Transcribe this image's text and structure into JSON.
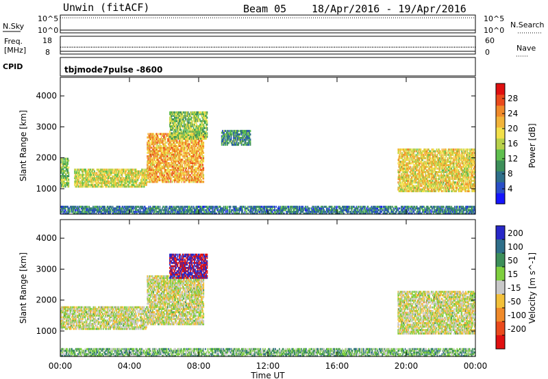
{
  "header": {
    "station": "Unwin (fitACF)",
    "beam": "Beam 05",
    "date_range": "18/Apr/2016 - 19/Apr/2016"
  },
  "status_panels": {
    "nsky_label": "N.Sky",
    "nsky_ticks": [
      "10^5",
      "10^0"
    ],
    "nsearch_label": "N.Search",
    "freq_label_1": "Freq.",
    "freq_label_2": "[MHz]",
    "freq_ticks": [
      "18",
      "8"
    ],
    "nave_ticks": [
      "60",
      "0"
    ],
    "nave_label": "Nave",
    "cpid_label": "CPID",
    "cpid_value": "tbjmode7pulse -8600"
  },
  "chart_data": [
    {
      "type": "heatmap",
      "name": "power",
      "ylabel": "Slant Range [km]",
      "ylim": [
        180,
        4600
      ],
      "yticks": [
        1000,
        2000,
        3000,
        4000
      ],
      "colorbar": {
        "label": "Power [dB]",
        "ticks": [
          4,
          8,
          12,
          16,
          20,
          24,
          28
        ],
        "range": [
          0,
          32
        ],
        "colors": [
          "#1515ff",
          "#2a4fc8",
          "#2f6f8a",
          "#3d8f5a",
          "#5fbf4f",
          "#b8d14a",
          "#f2e04a",
          "#f2b43a",
          "#f08a2a",
          "#ea4a1c",
          "#e01010"
        ]
      },
      "features": [
        {
          "t0": 0.0,
          "t1": 0.5,
          "r0": 1050,
          "r1": 2000,
          "level": 0.45
        },
        {
          "t0": 0.8,
          "t1": 5.0,
          "r0": 1050,
          "r1": 1650,
          "level": 0.55
        },
        {
          "t0": 5.0,
          "t1": 8.3,
          "r0": 1200,
          "r1": 2800,
          "level": 0.7
        },
        {
          "t0": 6.3,
          "t1": 8.5,
          "r0": 2600,
          "r1": 3500,
          "level": 0.45
        },
        {
          "t0": 9.3,
          "t1": 11.0,
          "r0": 2400,
          "r1": 2900,
          "level": 0.3
        },
        {
          "t0": 19.5,
          "t1": 24.0,
          "r0": 900,
          "r1": 2300,
          "level": 0.6
        },
        {
          "t0": 0.0,
          "t1": 24.0,
          "r0": 180,
          "r1": 450,
          "level": 0.25
        }
      ]
    },
    {
      "type": "heatmap",
      "name": "velocity",
      "ylabel": "Slant Range [km]",
      "xlabel": "Time UT",
      "xticks": [
        "00:00",
        "04:00",
        "08:00",
        "12:00",
        "16:00",
        "20:00",
        "00:00"
      ],
      "xlim_hours": [
        0,
        24
      ],
      "ylim": [
        180,
        4600
      ],
      "yticks": [
        1000,
        2000,
        3000,
        4000
      ],
      "colorbar": {
        "label": "Velocity [m s^-1]",
        "ticks": [
          200,
          100,
          50,
          15,
          -15,
          -50,
          -100,
          -200
        ],
        "colors": [
          "#2828c8",
          "#2f6f8a",
          "#3d8f5a",
          "#7fcf3f",
          "#c8c8c8",
          "#f2c03a",
          "#f08a2a",
          "#ea4a1c",
          "#e01010"
        ]
      },
      "features": [
        {
          "t0": 0.0,
          "t1": 5.0,
          "r0": 1050,
          "r1": 1800,
          "level": 0.5
        },
        {
          "t0": 5.0,
          "t1": 8.3,
          "r0": 1200,
          "r1": 2800,
          "level": 0.5
        },
        {
          "t0": 6.3,
          "t1": 8.5,
          "r0": 2700,
          "r1": 3500,
          "level": 0.9
        },
        {
          "t0": 19.5,
          "t1": 24.0,
          "r0": 900,
          "r1": 2300,
          "level": 0.5
        },
        {
          "t0": 0.0,
          "t1": 24.0,
          "r0": 180,
          "r1": 450,
          "level": 0.35
        }
      ]
    }
  ]
}
